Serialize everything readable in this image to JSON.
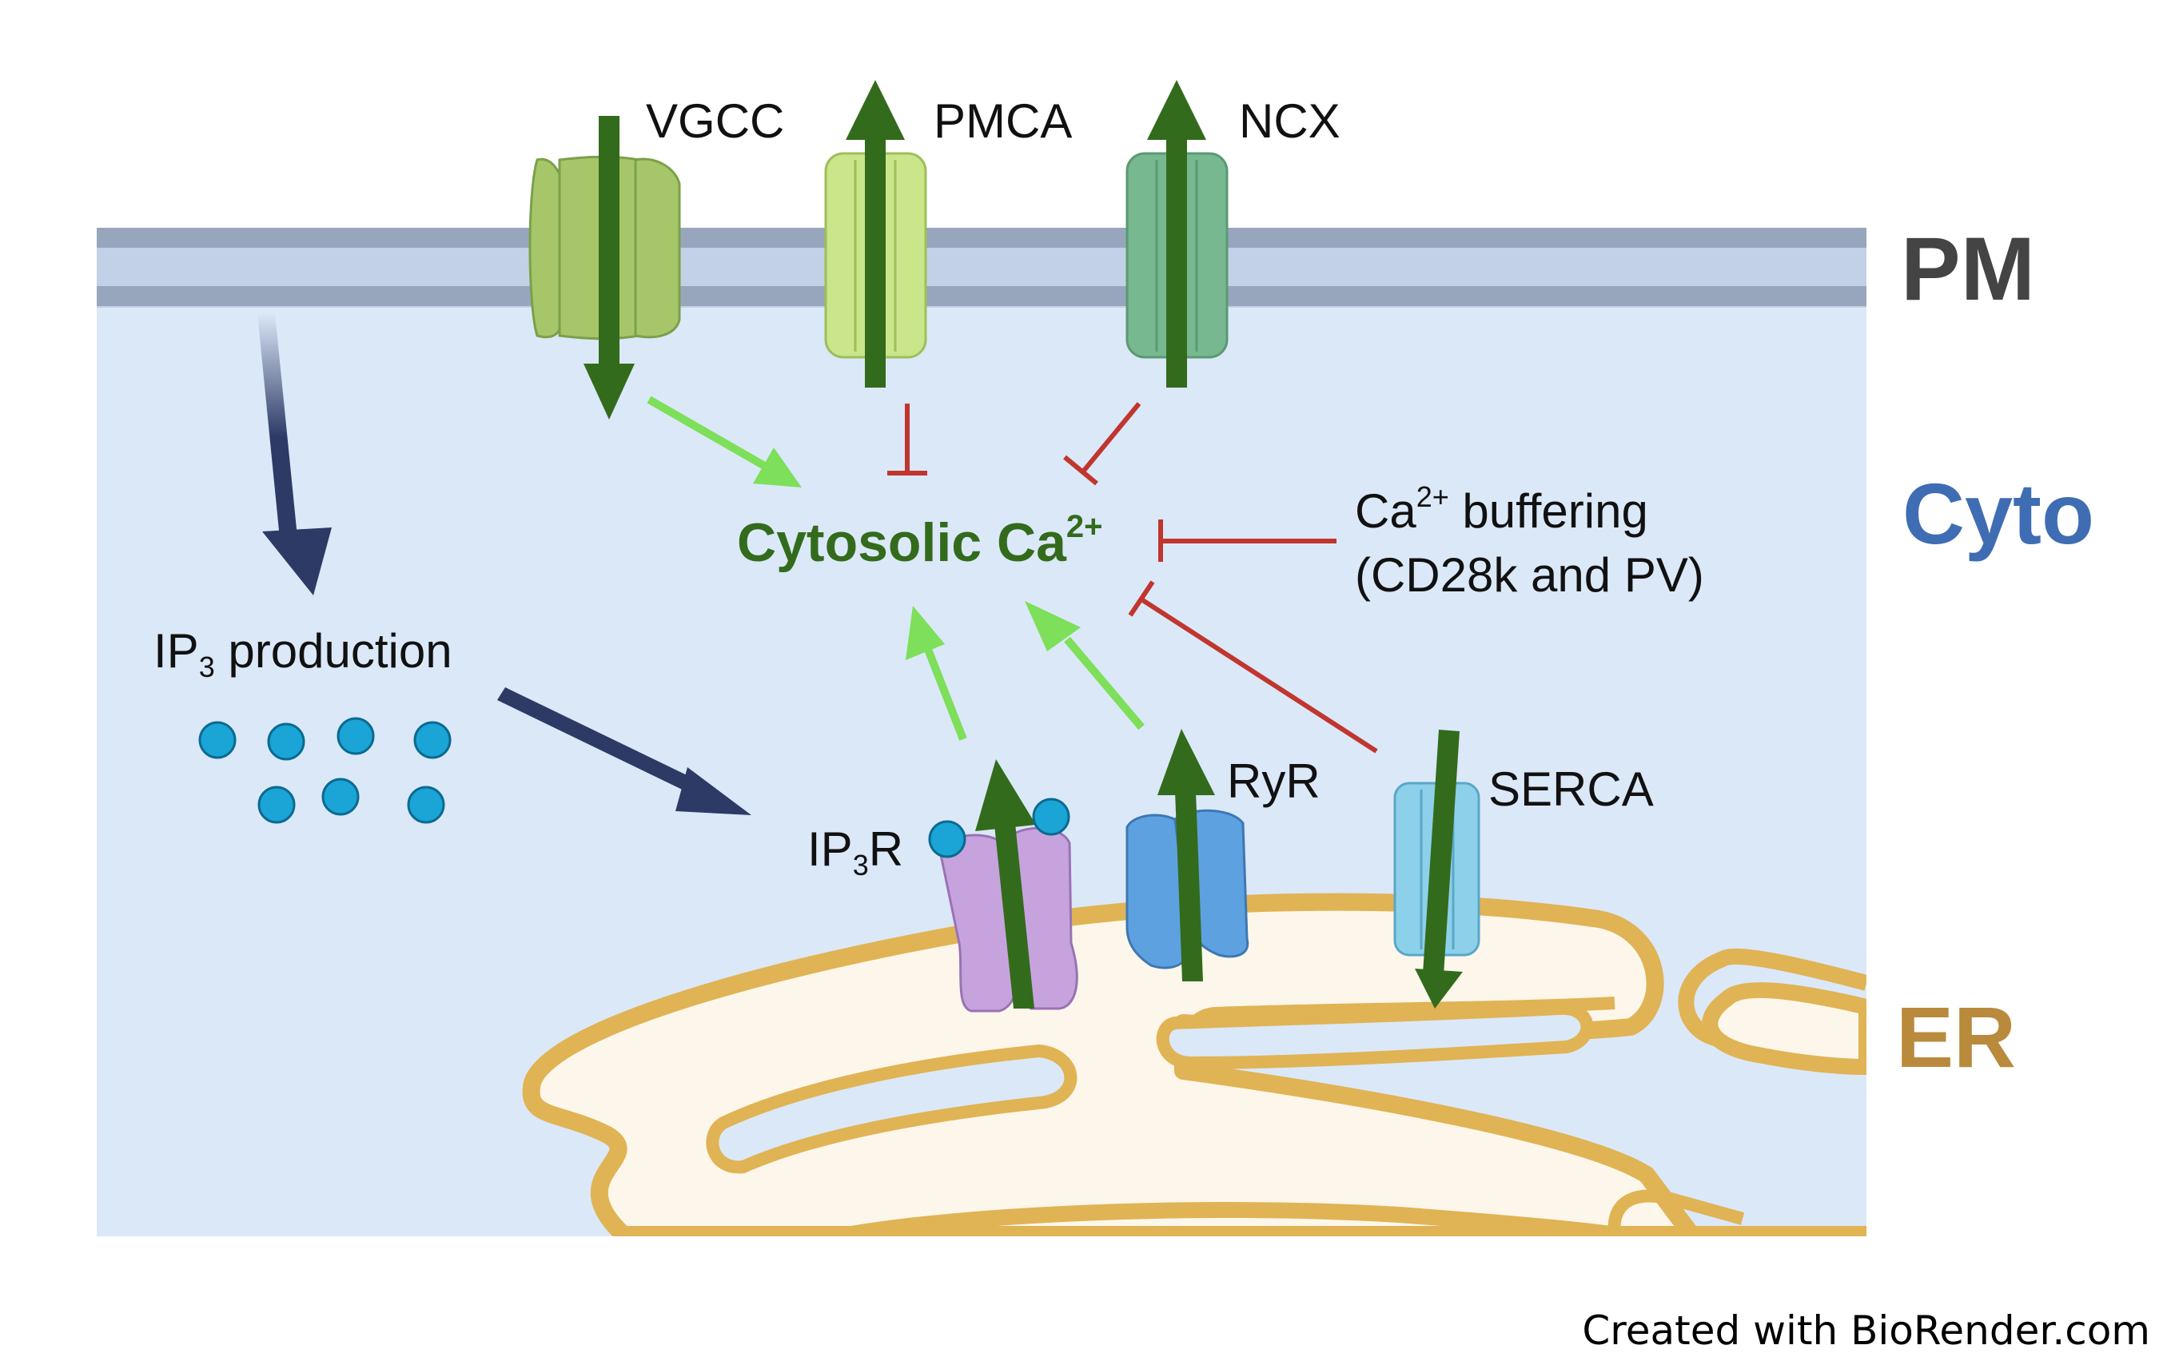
{
  "regions": {
    "pm": "PM",
    "cyto": "Cyto",
    "er": "ER"
  },
  "channels": {
    "vgcc": "VGCC",
    "pmca": "PMCA",
    "ncx": "NCX",
    "ip3r_prefix": "IP",
    "ip3r_sub": "3",
    "ip3r_suffix": "R",
    "ryr": "RyR",
    "serca": "SERCA"
  },
  "center": {
    "label": "Cytosolic Ca",
    "sup": "2+"
  },
  "buffering": {
    "line1_prefix": "Ca",
    "line1_sup": "2+",
    "line1_suffix": " buffering",
    "line2": "(CD28k and PV)"
  },
  "ip3_production": {
    "prefix": "IP",
    "sub": "3",
    "suffix": " production"
  },
  "credit": "Created with BioRender.com",
  "colors": {
    "membrane_band": "#c3d1e6",
    "membrane_line": "#97a6bd",
    "cytoplasm": "#dbe8f8",
    "er_fill": "#fdf6ea",
    "er_stroke": "#e0b354",
    "flux_arrow": "#336b1c",
    "activate_arrow": "#7ddf5a",
    "inhibit": "#c0362f",
    "navy_arrow": "#2d3a66",
    "ip3_dot": "#1aa5d6",
    "pm_text": "#444444",
    "cyto_text": "#3f6db3",
    "er_text": "#b98a3c",
    "center_text": "#336b1c"
  }
}
